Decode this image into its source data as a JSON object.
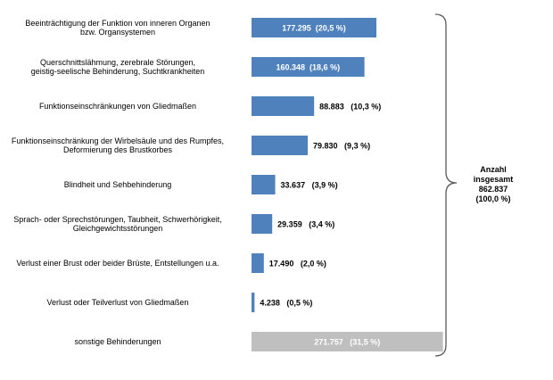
{
  "chart_data": {
    "type": "bar",
    "orientation": "horizontal",
    "categories": [
      [
        "Beeinträchtigung der Funktion von inneren Organen",
        "bzw. Organsystemen"
      ],
      [
        "Querschnittslähmung, zerebrale Störungen,",
        "geistig-seelische Behinderung, Suchtkrankheiten"
      ],
      [
        "Funktionseinschränkungen von Gliedmaßen"
      ],
      [
        "Funktionseinschränkung der Wirbelsäule und des Rumpfes,",
        "Deformierung des Brustkorbes"
      ],
      [
        "Blindheit und Sehbehinderung"
      ],
      [
        "Sprach- oder Sprechstörungen, Taubheit, Schwerhörigkeit,",
        "Gleichgewichtsstörungen"
      ],
      [
        "Verlust einer Brust oder beider Brüste, Entstellungen u.a."
      ],
      [
        "Verlust oder Teilverlust von Gliedmaßen"
      ],
      [
        "sonstige Behinderungen"
      ]
    ],
    "values": [
      177295,
      160348,
      88883,
      79830,
      33637,
      29359,
      17490,
      4238,
      271757
    ],
    "value_labels": [
      "177.295  (20,5 %)",
      "160.348  (18,6 %)",
      "88.883   (10,3 %)",
      "79.830   (9,3 %)",
      "33.637   (3,9 %)",
      "29.359   (3,4 %)",
      "17.490   (2,0 %)",
      "4.238   (0,5 %)",
      "271.757   (31,5 %)"
    ],
    "label_inside": [
      true,
      true,
      false,
      false,
      false,
      false,
      false,
      false,
      true
    ],
    "bar_colors": [
      "#4f81bd",
      "#4f81bd",
      "#4f81bd",
      "#4f81bd",
      "#4f81bd",
      "#4f81bd",
      "#4f81bd",
      "#4f81bd",
      "#bfbfbf"
    ],
    "grid": false,
    "total": {
      "lines": [
        "Anzahl",
        "insgesamt",
        "862.837",
        "(100,0 %)"
      ]
    }
  }
}
